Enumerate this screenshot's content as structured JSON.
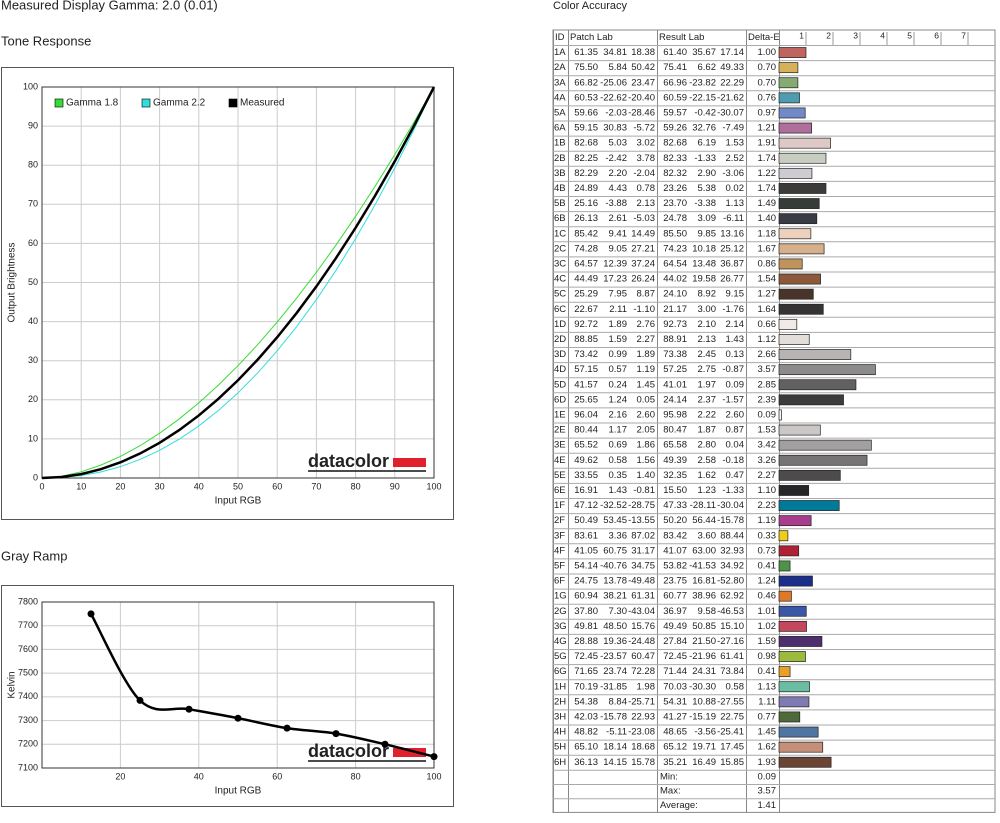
{
  "title": "Measured Display Gamma: 2.0 (0.01)",
  "chart_data": [
    {
      "type": "line",
      "title": "Tone Response",
      "x_label": "Input RGB",
      "y_label": "Output Brightness",
      "x": [
        0,
        5,
        10,
        15,
        20,
        25,
        30,
        35,
        40,
        45,
        50,
        55,
        60,
        65,
        70,
        75,
        80,
        85,
        90,
        95,
        100
      ],
      "series": [
        {
          "name": "Gamma 1.8",
          "color": "#33dd33",
          "width": 1,
          "values": [
            0,
            0.45,
            1.58,
            3.29,
            5.52,
            8.25,
            11.45,
            15.11,
            19.22,
            23.76,
            28.72,
            34.09,
            39.87,
            46.05,
            52.62,
            59.58,
            66.92,
            74.64,
            82.73,
            91.18,
            100
          ]
        },
        {
          "name": "Gamma 2.2",
          "color": "#33dddd",
          "width": 1,
          "values": [
            0,
            0.14,
            0.63,
            1.54,
            2.9,
            4.74,
            7.07,
            9.93,
            13.32,
            17.26,
            21.76,
            26.84,
            32.53,
            38.76,
            45.63,
            53.12,
            61.21,
            69.94,
            79.31,
            89.33,
            100
          ]
        },
        {
          "name": "Measured",
          "color": "#000000",
          "width": 2.5,
          "values": [
            0,
            0.25,
            1,
            2.25,
            4,
            6.25,
            9,
            12.25,
            16,
            20.25,
            25,
            30.25,
            36,
            42.25,
            49,
            56.25,
            64,
            72.25,
            81,
            90.25,
            100
          ]
        }
      ],
      "xlim": [
        0,
        100
      ],
      "ylim": [
        0,
        100
      ],
      "xticks": [
        0,
        10,
        20,
        30,
        40,
        50,
        60,
        70,
        80,
        90,
        100
      ],
      "yticks": [
        0,
        10,
        20,
        30,
        40,
        50,
        60,
        70,
        80,
        90,
        100
      ],
      "grid": true,
      "legend": "top-left",
      "logo": "datacolor"
    },
    {
      "type": "line",
      "title": "Gray Ramp",
      "x_label": "Input RGB",
      "y_label": "Kelvin",
      "x": [
        12.5,
        25,
        37.5,
        50,
        62.5,
        75,
        87.5,
        100
      ],
      "values": [
        7750,
        7385,
        7348,
        7310,
        7268,
        7245,
        7200,
        7148
      ],
      "color": "#000000",
      "width": 2.5,
      "smooth": true,
      "markers": true,
      "xlim": [
        0,
        100
      ],
      "ylim": [
        7100,
        7800
      ],
      "xticks": [
        20,
        40,
        60,
        80,
        100
      ],
      "yticks": [
        7100,
        7200,
        7300,
        7400,
        7500,
        7600,
        7700,
        7800
      ],
      "grid": true,
      "logo": "datacolor"
    },
    {
      "type": "bar",
      "title": "Color Accuracy",
      "columns": [
        "ID",
        "Patch Lab",
        "Result Lab",
        "Delta-E"
      ],
      "categories": [
        "1A",
        "2A",
        "3A",
        "4A",
        "5A",
        "6A",
        "1B",
        "2B",
        "3B",
        "4B",
        "5B",
        "6B",
        "1C",
        "2C",
        "3C",
        "4C",
        "5C",
        "6C",
        "1D",
        "2D",
        "3D",
        "4D",
        "5D",
        "6D",
        "1E",
        "2E",
        "3E",
        "4E",
        "5E",
        "6E",
        "1F",
        "2F",
        "3F",
        "4F",
        "5F",
        "6F",
        "1G",
        "2G",
        "3G",
        "4G",
        "5G",
        "6G",
        "1H",
        "2H",
        "3H",
        "4H",
        "5H",
        "6H"
      ],
      "patch_lab": [
        [
          "61.35",
          "34.81",
          "18.38"
        ],
        [
          "75.50",
          "5.84",
          "50.42"
        ],
        [
          "66.82",
          "-25.06",
          "23.47"
        ],
        [
          "60.53",
          "-22.62",
          "-20.40"
        ],
        [
          "59.66",
          "-2.03",
          "-28.46"
        ],
        [
          "59.15",
          "30.83",
          "-5.72"
        ],
        [
          "82.68",
          "5.03",
          "3.02"
        ],
        [
          "82.25",
          "-2.42",
          "3.78"
        ],
        [
          "82.29",
          "2.20",
          "-2.04"
        ],
        [
          "24.89",
          "4.43",
          "0.78"
        ],
        [
          "25.16",
          "-3.88",
          "2.13"
        ],
        [
          "26.13",
          "2.61",
          "-5.03"
        ],
        [
          "85.42",
          "9.41",
          "14.49"
        ],
        [
          "74.28",
          "9.05",
          "27.21"
        ],
        [
          "64.57",
          "12.39",
          "37.24"
        ],
        [
          "44.49",
          "17.23",
          "26.24"
        ],
        [
          "25.29",
          "7.95",
          "8.87"
        ],
        [
          "22.67",
          "2.11",
          "-1.10"
        ],
        [
          "92.72",
          "1.89",
          "2.76"
        ],
        [
          "88.85",
          "1.59",
          "2.27"
        ],
        [
          "73.42",
          "0.99",
          "1.89"
        ],
        [
          "57.15",
          "0.57",
          "1.19"
        ],
        [
          "41.57",
          "0.24",
          "1.45"
        ],
        [
          "25.65",
          "1.24",
          "0.05"
        ],
        [
          "96.04",
          "2.16",
          "2.60"
        ],
        [
          "80.44",
          "1.17",
          "2.05"
        ],
        [
          "65.52",
          "0.69",
          "1.86"
        ],
        [
          "49.62",
          "0.58",
          "1.56"
        ],
        [
          "33.55",
          "0.35",
          "1.40"
        ],
        [
          "16.91",
          "1.43",
          "-0.81"
        ],
        [
          "47.12",
          "-32.52",
          "-28.75"
        ],
        [
          "50.49",
          "53.45",
          "-13.55"
        ],
        [
          "83.61",
          "3.36",
          "87.02"
        ],
        [
          "41.05",
          "60.75",
          "31.17"
        ],
        [
          "54.14",
          "-40.76",
          "34.75"
        ],
        [
          "24.75",
          "13.78",
          "-49.48"
        ],
        [
          "60.94",
          "38.21",
          "61.31"
        ],
        [
          "37.80",
          "7.30",
          "-43.04"
        ],
        [
          "49.81",
          "48.50",
          "15.76"
        ],
        [
          "28.88",
          "19.36",
          "-24.48"
        ],
        [
          "72.45",
          "-23.57",
          "60.47"
        ],
        [
          "71.65",
          "23.74",
          "72.28"
        ],
        [
          "70.19",
          "-31.85",
          "1.98"
        ],
        [
          "54.38",
          "8.84",
          "-25.71"
        ],
        [
          "42.03",
          "-15.78",
          "22.93"
        ],
        [
          "48.82",
          "-5.11",
          "-23.08"
        ],
        [
          "65.10",
          "18.14",
          "18.68"
        ],
        [
          "36.13",
          "14.15",
          "15.78"
        ]
      ],
      "result_lab": [
        [
          "61.40",
          "35.67",
          "17.14"
        ],
        [
          "75.41",
          "6.62",
          "49.33"
        ],
        [
          "66.96",
          "-23.82",
          "22.29"
        ],
        [
          "60.59",
          "-22.15",
          "-21.62"
        ],
        [
          "59.57",
          "-0.42",
          "-30.07"
        ],
        [
          "59.26",
          "32.76",
          "-7.49"
        ],
        [
          "82.68",
          "6.19",
          "1.53"
        ],
        [
          "82.33",
          "-1.33",
          "2.52"
        ],
        [
          "82.32",
          "2.90",
          "-3.06"
        ],
        [
          "23.26",
          "5.38",
          "0.02"
        ],
        [
          "23.70",
          "-3.38",
          "1.13"
        ],
        [
          "24.78",
          "3.09",
          "-6.11"
        ],
        [
          "85.50",
          "9.85",
          "13.16"
        ],
        [
          "74.23",
          "10.18",
          "25.12"
        ],
        [
          "64.54",
          "13.48",
          "36.87"
        ],
        [
          "44.02",
          "19.58",
          "26.77"
        ],
        [
          "24.10",
          "8.92",
          "9.15"
        ],
        [
          "21.17",
          "3.00",
          "-1.76"
        ],
        [
          "92.73",
          "2.10",
          "2.14"
        ],
        [
          "88.91",
          "2.13",
          "1.43"
        ],
        [
          "73.38",
          "2.45",
          "0.13"
        ],
        [
          "57.25",
          "2.75",
          "-0.87"
        ],
        [
          "41.01",
          "1.97",
          "0.09"
        ],
        [
          "24.14",
          "2.37",
          "-1.57"
        ],
        [
          "95.98",
          "2.22",
          "2.60"
        ],
        [
          "80.47",
          "1.87",
          "0.87"
        ],
        [
          "65.58",
          "2.80",
          "0.04"
        ],
        [
          "49.39",
          "2.58",
          "-0.18"
        ],
        [
          "32.35",
          "1.62",
          "0.47"
        ],
        [
          "15.50",
          "1.23",
          "-1.33"
        ],
        [
          "47.33",
          "-28.11",
          "-30.04"
        ],
        [
          "50.20",
          "56.44",
          "-15.78"
        ],
        [
          "83.42",
          "3.60",
          "88.44"
        ],
        [
          "41.07",
          "63.00",
          "32.93"
        ],
        [
          "53.82",
          "-41.53",
          "34.92"
        ],
        [
          "23.75",
          "16.81",
          "-52.80"
        ],
        [
          "60.77",
          "38.96",
          "62.92"
        ],
        [
          "36.97",
          "9.58",
          "-46.53"
        ],
        [
          "49.49",
          "50.85",
          "15.10"
        ],
        [
          "27.84",
          "21.50",
          "-27.16"
        ],
        [
          "72.45",
          "-21.96",
          "61.41"
        ],
        [
          "71.44",
          "24.31",
          "73.84"
        ],
        [
          "70.03",
          "-30.30",
          "0.58"
        ],
        [
          "54.31",
          "10.88",
          "-27.55"
        ],
        [
          "41.27",
          "-15.19",
          "22.75"
        ],
        [
          "48.65",
          "-3.56",
          "-25.41"
        ],
        [
          "65.12",
          "19.71",
          "17.45"
        ],
        [
          "35.21",
          "16.49",
          "15.85"
        ]
      ],
      "values": [
        1.0,
        0.7,
        0.7,
        0.76,
        0.97,
        1.21,
        1.91,
        1.74,
        1.22,
        1.74,
        1.49,
        1.4,
        1.18,
        1.67,
        0.86,
        1.54,
        1.27,
        1.64,
        0.66,
        1.12,
        2.66,
        3.57,
        2.85,
        2.39,
        0.09,
        1.53,
        3.42,
        3.26,
        2.27,
        1.1,
        2.23,
        1.19,
        0.33,
        0.73,
        0.41,
        1.24,
        0.46,
        1.01,
        1.02,
        1.59,
        0.98,
        0.41,
        1.13,
        1.11,
        0.77,
        1.45,
        1.62,
        1.93
      ],
      "value_labels": [
        "1.00",
        "0.70",
        "0.70",
        "0.76",
        "0.97",
        "1.21",
        "1.91",
        "1.74",
        "1.22",
        "1.74",
        "1.49",
        "1.40",
        "1.18",
        "1.67",
        "0.86",
        "1.54",
        "1.27",
        "1.64",
        "0.66",
        "1.12",
        "2.66",
        "3.57",
        "2.85",
        "2.39",
        "0.09",
        "1.53",
        "3.42",
        "3.26",
        "2.27",
        "1.10",
        "2.23",
        "1.19",
        "0.33",
        "0.73",
        "0.41",
        "1.24",
        "0.46",
        "1.01",
        "1.02",
        "1.59",
        "0.98",
        "0.41",
        "1.13",
        "1.11",
        "0.77",
        "1.45",
        "1.62",
        "1.93"
      ],
      "colors": [
        "#c0645f",
        "#d6b15a",
        "#86ab72",
        "#4d9cb0",
        "#7189c6",
        "#b06e9a",
        "#dec9c7",
        "#c8cdc2",
        "#cfcbd3",
        "#3d3a3a",
        "#363c37",
        "#3a3c45",
        "#edd1bd",
        "#d5b08a",
        "#c0925c",
        "#8c5a3a",
        "#4a3429",
        "#363335",
        "#f0ebe7",
        "#e3deda",
        "#b8b4b3",
        "#8d8a8b",
        "#626060",
        "#3b3a3c",
        "#faf4f1",
        "#cbc7c6",
        "#a29fa0",
        "#777475",
        "#4d4b4b",
        "#262527",
        "#007a9a",
        "#a83d8e",
        "#f0cc1a",
        "#ae2234",
        "#4c9446",
        "#1b2e8a",
        "#e07829",
        "#3a56a6",
        "#c4475e",
        "#4d2e6f",
        "#9cba3e",
        "#e9a029",
        "#6abca3",
        "#7e7ab3",
        "#4e6a3b",
        "#4f76a2",
        "#c68f7a",
        "#6b4433"
      ],
      "xlim": [
        0,
        8
      ],
      "xticks": [
        1,
        2,
        3,
        4,
        5,
        6,
        7
      ],
      "summary": {
        "labels": [
          "Min:",
          "Max:",
          "Average:"
        ],
        "values": [
          0.09,
          3.57,
          1.41
        ]
      }
    }
  ]
}
